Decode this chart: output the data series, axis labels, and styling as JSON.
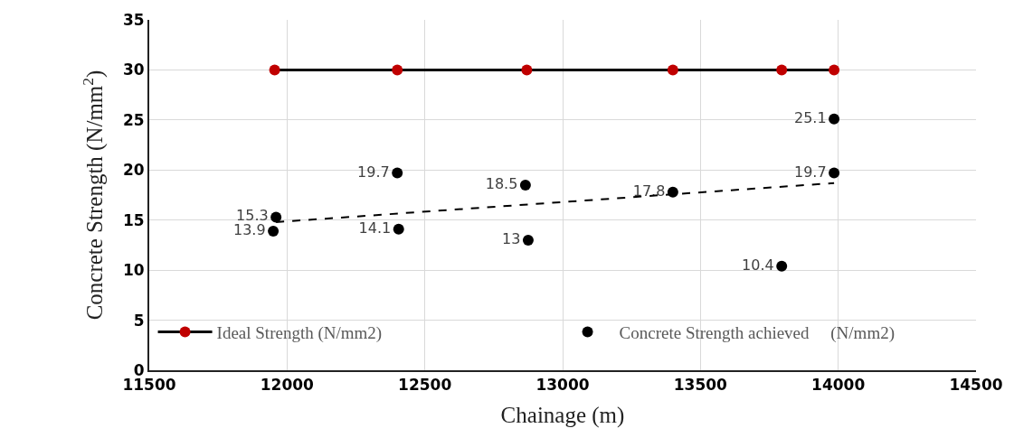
{
  "chart_data": {
    "type": "scatter",
    "xlabel": "Chainage (m)",
    "ylabel": "Concrete Strength (N/mm$^{2}$)",
    "xlim": [
      11500,
      14500
    ],
    "xticks": [
      11500,
      12000,
      12500,
      13000,
      13500,
      14000,
      14500
    ],
    "ylim": [
      0,
      35
    ],
    "yticks": [
      0,
      5,
      10,
      15,
      20,
      25,
      30,
      35
    ],
    "grid": true,
    "legend": "bottom",
    "marker": "circle",
    "series": [
      {
        "name": "Ideal Strength (N/mm2)",
        "type": "line",
        "color": "#000000",
        "colors": [
          "#c00000",
          "#c00000",
          "#c00000",
          "#c00000",
          "#c00000",
          "#c00000"
        ],
        "x": [
          11955,
          12400,
          12870,
          13400,
          13795,
          13985
        ],
        "values": [
          30,
          30,
          30,
          30,
          30,
          30
        ]
      },
      {
        "name": "Concrete Strength achieved     (N/mm2)",
        "color": "#000000",
        "x": [
          11950,
          11960,
          12400,
          12405,
          12865,
          12875,
          13400,
          13795,
          13985,
          13985
        ],
        "values": [
          13.9,
          15.3,
          19.7,
          14.1,
          18.5,
          13,
          17.8,
          10.4,
          25.1,
          19.7
        ],
        "value_labels": [
          "13.9",
          "15.3",
          "19.7",
          "14.1",
          "18.5",
          "13",
          "17.8",
          "10.4",
          "25.1",
          "19.7"
        ]
      },
      {
        "type": "line",
        "color": "#000000",
        "line_style": "dashed",
        "marker": "none",
        "x": [
          11960,
          13985
        ],
        "values": [
          14.8,
          18.7
        ]
      }
    ]
  }
}
